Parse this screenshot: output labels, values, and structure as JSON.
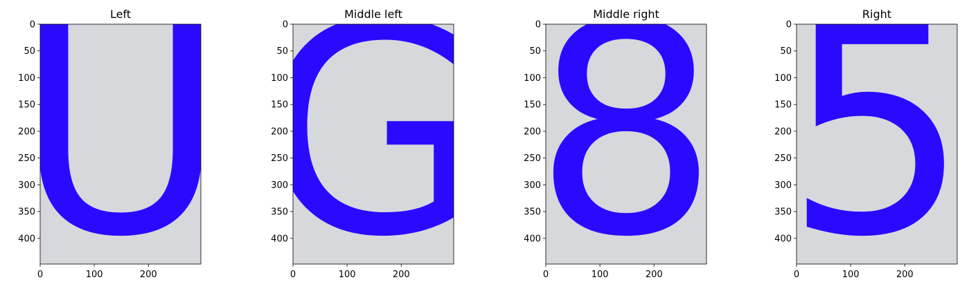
{
  "chart_data": [
    {
      "type": "image",
      "title": "Left",
      "character": "U",
      "xlim": [
        0,
        297
      ],
      "ylim": [
        448,
        0
      ],
      "xticks": [
        0,
        100,
        200
      ],
      "yticks": [
        0,
        50,
        100,
        150,
        200,
        250,
        300,
        350,
        400
      ],
      "glyph_color": "#2a0aff",
      "background_color": "#d7d8dc"
    },
    {
      "type": "image",
      "title": "Middle left",
      "character": "G",
      "xlim": [
        0,
        297
      ],
      "ylim": [
        448,
        0
      ],
      "xticks": [
        0,
        100,
        200
      ],
      "yticks": [
        0,
        50,
        100,
        150,
        200,
        250,
        300,
        350,
        400
      ],
      "glyph_color": "#2a0aff",
      "background_color": "#d7d8dc"
    },
    {
      "type": "image",
      "title": "Middle right",
      "character": "8",
      "xlim": [
        0,
        297
      ],
      "ylim": [
        448,
        0
      ],
      "xticks": [
        0,
        100,
        200
      ],
      "yticks": [
        0,
        50,
        100,
        150,
        200,
        250,
        300,
        350,
        400
      ],
      "glyph_color": "#2a0aff",
      "background_color": "#d7d8dc"
    },
    {
      "type": "image",
      "title": "Right",
      "character": "5",
      "xlim": [
        0,
        297
      ],
      "ylim": [
        448,
        0
      ],
      "xticks": [
        0,
        100,
        200
      ],
      "yticks": [
        0,
        50,
        100,
        150,
        200,
        250,
        300,
        350,
        400
      ],
      "glyph_color": "#2a0aff",
      "background_color": "#d7d8dc"
    }
  ]
}
